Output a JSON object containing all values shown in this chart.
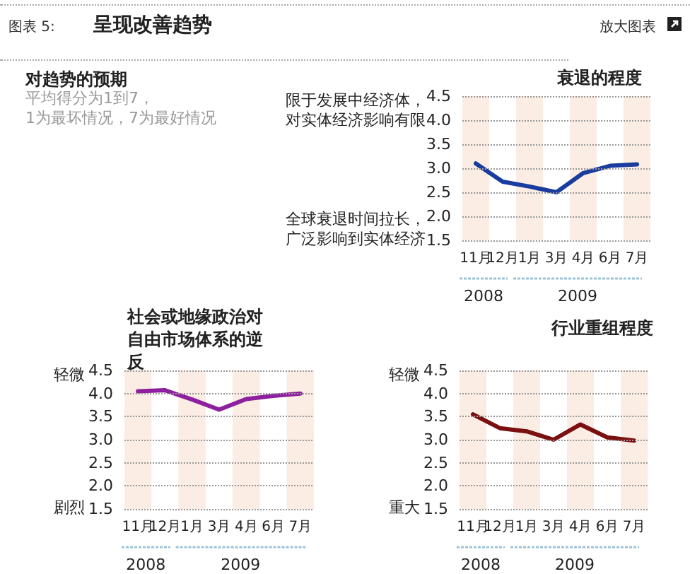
{
  "chart_data": [
    {
      "type": "other",
      "title": "呈现改善趋势",
      "subtitle": "平均得分为1到7，\n1为最坏情况，7为最好情况",
      "annotations": [
        "图表 5:",
        "放大图表",
        "对趋势的预期"
      ]
    },
    {
      "type": "line",
      "title": "衰退的程度",
      "categories": [
        "11月",
        "12月",
        "1月",
        "3月",
        "4月",
        "6月",
        "7月"
      ],
      "series": [
        {
          "color": "#1a3c9e",
          "values": [
            3.1,
            2.72,
            2.62,
            2.5,
            2.9,
            3.05,
            3.08
          ]
        }
      ],
      "ylim": [
        1.5,
        4.5
      ],
      "yticks": [
        1.5,
        {
          "value": 2,
          "label": "2.0"
        },
        2.5,
        {
          "value": 3,
          "label": "3.0"
        },
        3.5,
        {
          "value": 4,
          "label": "4.0"
        },
        4.5
      ],
      "grid": "y",
      "marker": "none",
      "line_style": "solid",
      "annotations": [
        "限于发展中经济体，对实体经济影响有限",
        "全球衰退时间拉长，广泛影响到实体经济",
        "2008",
        "2009"
      ]
    },
    {
      "type": "line",
      "title": "社会或地缘政治对自由市场体系的逆反",
      "categories": [
        "11月",
        "12月",
        "1月",
        "3月",
        "4月",
        "6月",
        "7月"
      ],
      "series": [
        {
          "color": "#8e1f9e",
          "values": [
            4.05,
            4.07,
            3.87,
            3.65,
            3.88,
            3.95,
            4.0
          ]
        }
      ],
      "ylim": [
        1.5,
        4.5
      ],
      "yticks": [
        1.5,
        {
          "value": 2,
          "label": "2.0"
        },
        2.5,
        {
          "value": 3,
          "label": "3.0"
        },
        3.5,
        {
          "value": 4,
          "label": "4.0"
        },
        4.5
      ],
      "grid": "y",
      "marker": "none",
      "line_style": "solid",
      "annotations": [
        "轻微",
        "剧烈",
        "2008",
        "2009"
      ]
    },
    {
      "type": "line",
      "title": "行业重组程度",
      "categories": [
        "11月",
        "12月",
        "1月",
        "3月",
        "4月",
        "6月",
        "7月"
      ],
      "series": [
        {
          "color": "#7a1010",
          "values": [
            3.55,
            3.25,
            3.18,
            3.0,
            3.33,
            3.05,
            2.98
          ]
        }
      ],
      "ylim": [
        1.5,
        4.5
      ],
      "yticks": [
        1.5,
        {
          "value": 2,
          "label": "2.0"
        },
        2.5,
        {
          "value": 3,
          "label": "3.0"
        },
        3.5,
        {
          "value": 4,
          "label": "4.0"
        },
        4.5
      ],
      "grid": "y",
      "marker": "none",
      "line_style": "solid",
      "annotations": [
        "轻微",
        "重大",
        "2008",
        "2009"
      ]
    }
  ]
}
